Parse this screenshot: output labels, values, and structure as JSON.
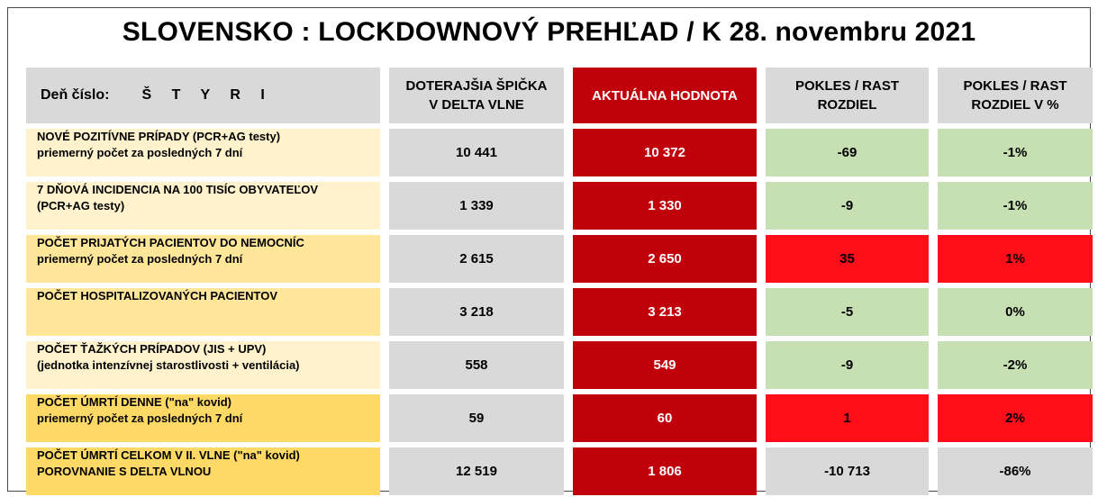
{
  "title": "SLOVENSKO : LOCKDOWNOVÝ PREHĽAD  / K 28. novembru 2021",
  "header": {
    "day_label": "Deň číslo:",
    "day_value": "Š T Y R I",
    "col_peak_line1": "DOTERAJŠIA ŠPIČKA",
    "col_peak_line2": "V DELTA VLNE",
    "col_current": "AKTUÁLNA HODNOTA",
    "col_diff_line1": "POKLES / RAST",
    "col_diff_line2": "ROZDIEL",
    "col_pct_line1": "POKLES / RAST",
    "col_pct_line2": "ROZDIEL V %"
  },
  "colors": {
    "header_gray": "#d9d9d9",
    "current_red": "#c0000b",
    "decrease_green": "#c6e0b4",
    "increase_red": "#ff0d19",
    "label_light": "#fff2cc",
    "label_mid": "#ffe699",
    "label_dark": "#ffd966"
  },
  "rows": [
    {
      "line1": "NOVÉ POZITÍVNE PRÍPADY (PCR+AG testy)",
      "line2": "priemerný počet za posledných 7 dní",
      "peak": "10 441",
      "current": "10 372",
      "diff": "-69",
      "pct": "-1%",
      "trend": "down"
    },
    {
      "line1": "7 DŇOVÁ INCIDENCIA NA 100 TISÍC OBYVATEĽOV",
      "line2": "(PCR+AG testy)",
      "peak": "1 339",
      "current": "1 330",
      "diff": "-9",
      "pct": "-1%",
      "trend": "down"
    },
    {
      "line1": "POČET PRIJATÝCH PACIENTOV DO NEMOCNÍC",
      "line2": "priemerný počet za posledných 7 dní",
      "peak": "2 615",
      "current": "2 650",
      "diff": "35",
      "pct": "1%",
      "trend": "up"
    },
    {
      "line1": "POČET HOSPITALIZOVANÝCH PACIENTOV",
      "line2": "",
      "peak": "3 218",
      "current": "3 213",
      "diff": "-5",
      "pct": "0%",
      "trend": "down"
    },
    {
      "line1": "POČET ŤAŽKÝCH PRÍPADOV (JIS + UPV)",
      "line2": "(jednotka intenzívnej starostlivosti + ventilácia)",
      "peak": "558",
      "current": "549",
      "diff": "-9",
      "pct": "-2%",
      "trend": "down"
    },
    {
      "line1": "POČET ÚMRTÍ DENNE (\"na\" kovid)",
      "line2": "priemerný počet za posledných 7 dní",
      "peak": "59",
      "current": "60",
      "diff": "1",
      "pct": "2%",
      "trend": "up"
    },
    {
      "line1": "POČET ÚMRTÍ CELKOM V II. VLNE (\"na\" kovid)",
      "line2": "POROVNANIE S DELTA VLNOU",
      "peak": "12 519",
      "current": "1 806",
      "diff": "-10 713",
      "pct": "-86%",
      "trend": "neutral"
    }
  ]
}
